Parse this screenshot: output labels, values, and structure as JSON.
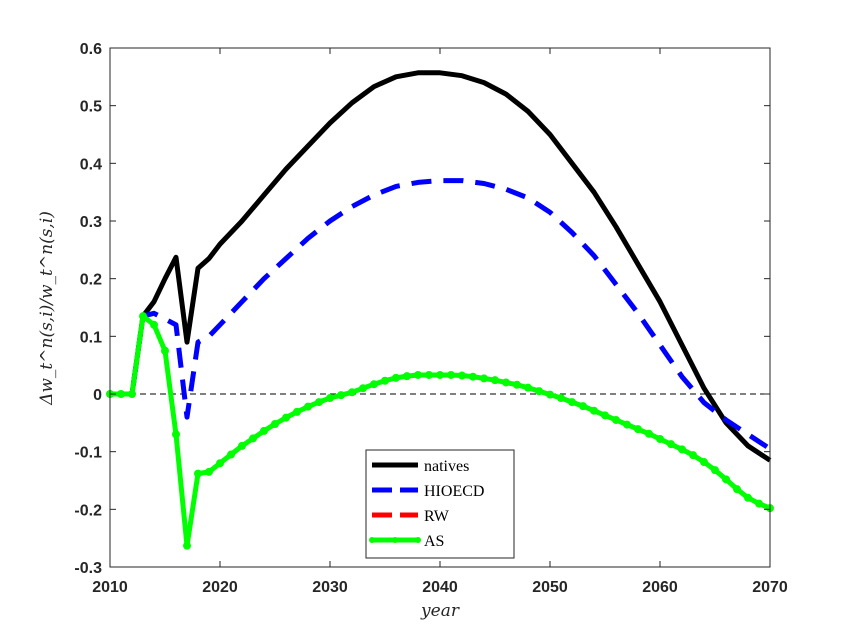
{
  "chart_data": {
    "type": "line",
    "xlabel": "year",
    "ylabel": "Δw_t^n(s,i)/w_t^n(s,i)",
    "xlim": [
      2010,
      2070
    ],
    "ylim": [
      -0.3,
      0.6
    ],
    "xticks": [
      "2010",
      "2020",
      "2030",
      "2040",
      "2050",
      "2060",
      "2070"
    ],
    "yticks": [
      "-0.3",
      "-0.2",
      "-0.1",
      "0",
      "0.1",
      "0.2",
      "0.3",
      "0.4",
      "0.5",
      "0.6"
    ],
    "grid": false,
    "zero_line": true,
    "legend_position": "bottom-center",
    "series": [
      {
        "name": "natives",
        "color": "#000000",
        "style": "solid",
        "x": [
          2010,
          2011,
          2012,
          2013,
          2014,
          2015,
          2016,
          2017,
          2018,
          2019,
          2020,
          2022,
          2024,
          2026,
          2028,
          2030,
          2032,
          2034,
          2036,
          2038,
          2040,
          2042,
          2044,
          2046,
          2048,
          2050,
          2052,
          2054,
          2056,
          2058,
          2060,
          2062,
          2064,
          2066,
          2068,
          2070
        ],
        "y": [
          0,
          0,
          0,
          0.135,
          0.16,
          0.2,
          0.237,
          0.09,
          0.218,
          0.235,
          0.26,
          0.3,
          0.345,
          0.39,
          0.43,
          0.47,
          0.505,
          0.533,
          0.55,
          0.557,
          0.557,
          0.552,
          0.54,
          0.52,
          0.49,
          0.45,
          0.4,
          0.35,
          0.29,
          0.225,
          0.16,
          0.085,
          0.01,
          -0.05,
          -0.09,
          -0.115
        ]
      },
      {
        "name": "HIOECD",
        "color": "#0000ff",
        "style": "dashed",
        "x": [
          2010,
          2011,
          2012,
          2013,
          2014,
          2015,
          2016,
          2017,
          2018,
          2019,
          2020,
          2022,
          2024,
          2026,
          2028,
          2030,
          2032,
          2034,
          2036,
          2038,
          2040,
          2042,
          2044,
          2046,
          2048,
          2050,
          2052,
          2054,
          2056,
          2058,
          2060,
          2062,
          2064,
          2066,
          2068,
          2070
        ],
        "y": [
          0,
          0,
          0,
          0.135,
          0.14,
          0.13,
          0.12,
          -0.04,
          0.09,
          0.1,
          0.12,
          0.16,
          0.2,
          0.235,
          0.27,
          0.3,
          0.325,
          0.345,
          0.36,
          0.367,
          0.37,
          0.37,
          0.365,
          0.355,
          0.34,
          0.315,
          0.28,
          0.24,
          0.19,
          0.14,
          0.085,
          0.03,
          -0.015,
          -0.045,
          -0.07,
          -0.095
        ]
      },
      {
        "name": "RW",
        "color": "#ff0000",
        "style": "dashed",
        "x": [],
        "y": []
      },
      {
        "name": "AS",
        "color": "#00ff00",
        "style": "solid-marker",
        "x": [
          2010,
          2011,
          2012,
          2013,
          2014,
          2015,
          2016,
          2017,
          2018,
          2019,
          2020,
          2021,
          2022,
          2023,
          2024,
          2025,
          2026,
          2027,
          2028,
          2029,
          2030,
          2031,
          2032,
          2033,
          2034,
          2035,
          2036,
          2037,
          2038,
          2039,
          2040,
          2041,
          2042,
          2043,
          2044,
          2045,
          2046,
          2047,
          2048,
          2049,
          2050,
          2051,
          2052,
          2053,
          2054,
          2055,
          2056,
          2057,
          2058,
          2059,
          2060,
          2061,
          2062,
          2063,
          2064,
          2065,
          2066,
          2067,
          2068,
          2069,
          2070
        ],
        "y": [
          0,
          0,
          0,
          0.135,
          0.12,
          0.075,
          -0.07,
          -0.263,
          -0.138,
          -0.135,
          -0.12,
          -0.105,
          -0.09,
          -0.077,
          -0.064,
          -0.052,
          -0.041,
          -0.031,
          -0.022,
          -0.014,
          -0.007,
          -0.002,
          0.003,
          0.01,
          0.017,
          0.023,
          0.028,
          0.031,
          0.033,
          0.033,
          0.033,
          0.033,
          0.032,
          0.03,
          0.027,
          0.024,
          0.02,
          0.016,
          0.011,
          0.005,
          -0.001,
          -0.007,
          -0.014,
          -0.021,
          -0.029,
          -0.037,
          -0.045,
          -0.053,
          -0.061,
          -0.069,
          -0.078,
          -0.087,
          -0.096,
          -0.106,
          -0.118,
          -0.132,
          -0.148,
          -0.165,
          -0.18,
          -0.19,
          -0.198
        ]
      }
    ]
  }
}
